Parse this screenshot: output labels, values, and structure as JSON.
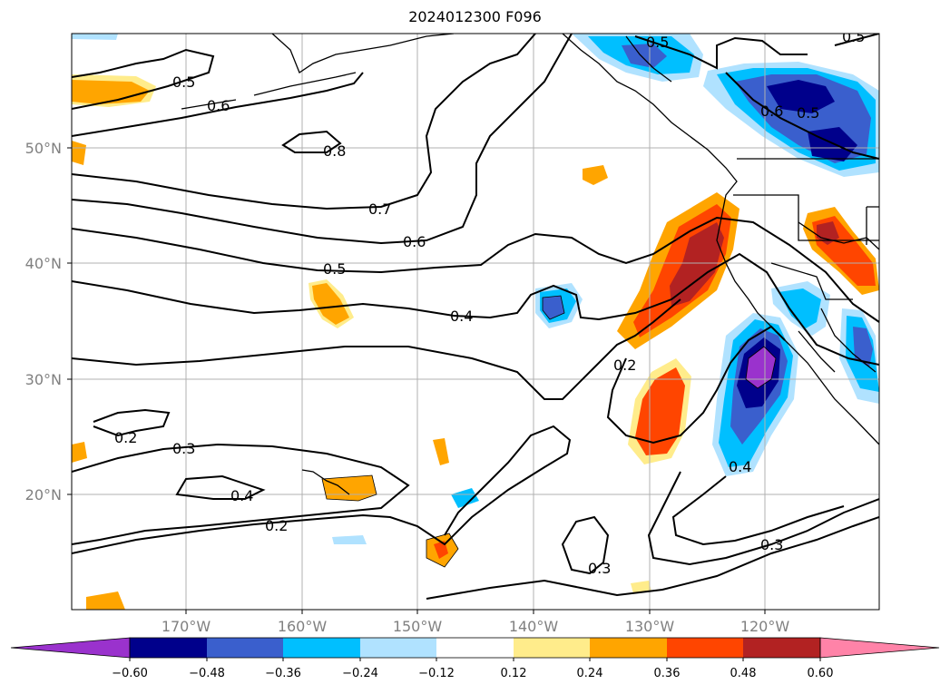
{
  "title": "2024012300 F096",
  "map": {
    "lat_labels": [
      "50°N",
      "40°N",
      "30°N",
      "20°N"
    ],
    "lon_labels": [
      "170°W",
      "160°W",
      "150°W",
      "140°W",
      "130°W",
      "120°W"
    ],
    "contour_labels": [
      "0.5",
      "0.6",
      "0.8",
      "0.7",
      "0.6",
      "0.5",
      "0.4",
      "0.2",
      "0.2",
      "0.3",
      "0.4",
      "0.2",
      "0.3",
      "0.3",
      "0.4",
      "0.5",
      "0.6",
      "0.5",
      "0.5"
    ]
  },
  "colorbar": {
    "colors": [
      "#9a32cd",
      "#00008b",
      "#3a5fcd",
      "#00bfff",
      "#b0e2ff",
      "#ffffff",
      "#ffec8b",
      "#ffa500",
      "#ff4500",
      "#b22222",
      "#ff83a8"
    ],
    "tick_labels": [
      "−0.60",
      "−0.48",
      "−0.36",
      "−0.24",
      "−0.12",
      "0.12",
      "0.24",
      "0.36",
      "0.48",
      "0.60"
    ]
  }
}
